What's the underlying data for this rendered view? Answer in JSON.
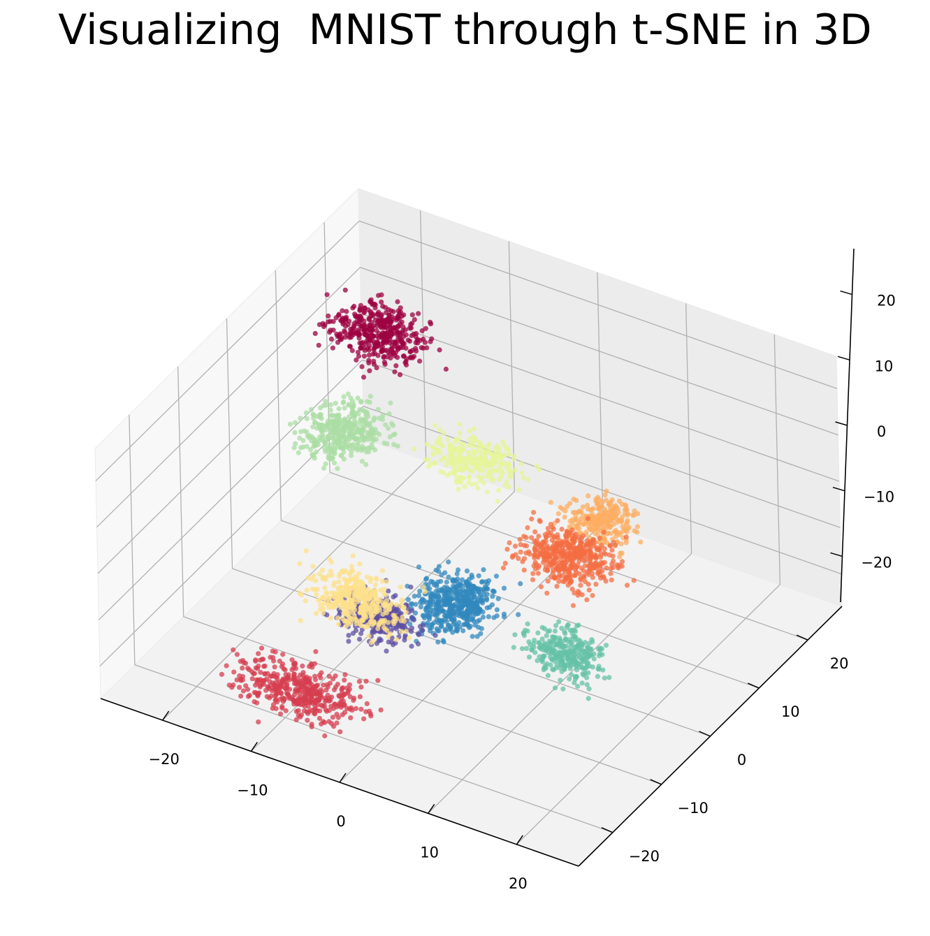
{
  "chart_data": {
    "type": "scatter",
    "projection": "3d",
    "title": "Visualizing  MNIST through t-SNE in 3D",
    "xlabel": "",
    "ylabel": "",
    "zlabel": "",
    "xlim": [
      -27,
      27
    ],
    "ylim": [
      -27,
      27
    ],
    "zlim": [
      -27,
      27
    ],
    "grid": true,
    "legend": "none",
    "colormap": "Spectral",
    "x_ticks": [
      "−20",
      "−10",
      "0",
      "10",
      "20"
    ],
    "y_ticks": [
      "−20",
      "−10",
      "0",
      "10",
      "20"
    ],
    "z_ticks": [
      "−20",
      "−10",
      "0",
      "10",
      "20"
    ],
    "clusters": [
      {
        "color": "#9e0142",
        "center": [
          -20,
          18,
          10
        ],
        "spread": [
          5,
          4,
          3.5
        ],
        "count": 420
      },
      {
        "color": "#d53e4f",
        "center": [
          -8,
          -20,
          -20
        ],
        "spread": [
          7,
          4,
          3
        ],
        "count": 430
      },
      {
        "color": "#f46d43",
        "center": [
          7,
          8,
          -10
        ],
        "spread": [
          5,
          4,
          4
        ],
        "count": 460
      },
      {
        "color": "#fdae61",
        "center": [
          5,
          18,
          -14
        ],
        "spread": [
          3.5,
          3.5,
          3
        ],
        "count": 260
      },
      {
        "color": "#fee08b",
        "center": [
          1,
          -24,
          10
        ],
        "spread": [
          5,
          3,
          5
        ],
        "count": 380
      },
      {
        "color": "#e6f598",
        "center": [
          -6,
          12,
          -2
        ],
        "spread": [
          5,
          4,
          2.5
        ],
        "count": 260
      },
      {
        "color": "#abdda4",
        "center": [
          -16,
          4,
          6
        ],
        "spread": [
          4,
          5,
          3
        ],
        "count": 380
      },
      {
        "color": "#66c2a5",
        "center": [
          13,
          -4,
          -14
        ],
        "spread": [
          4,
          3,
          4
        ],
        "count": 300
      },
      {
        "color": "#3288bd",
        "center": [
          3,
          -8,
          -6
        ],
        "spread": [
          4,
          5,
          3
        ],
        "count": 480
      },
      {
        "color": "#5e4fa2",
        "center": [
          1,
          -20,
          2
        ],
        "spread": [
          4,
          3,
          3.5
        ],
        "count": 300
      }
    ]
  }
}
